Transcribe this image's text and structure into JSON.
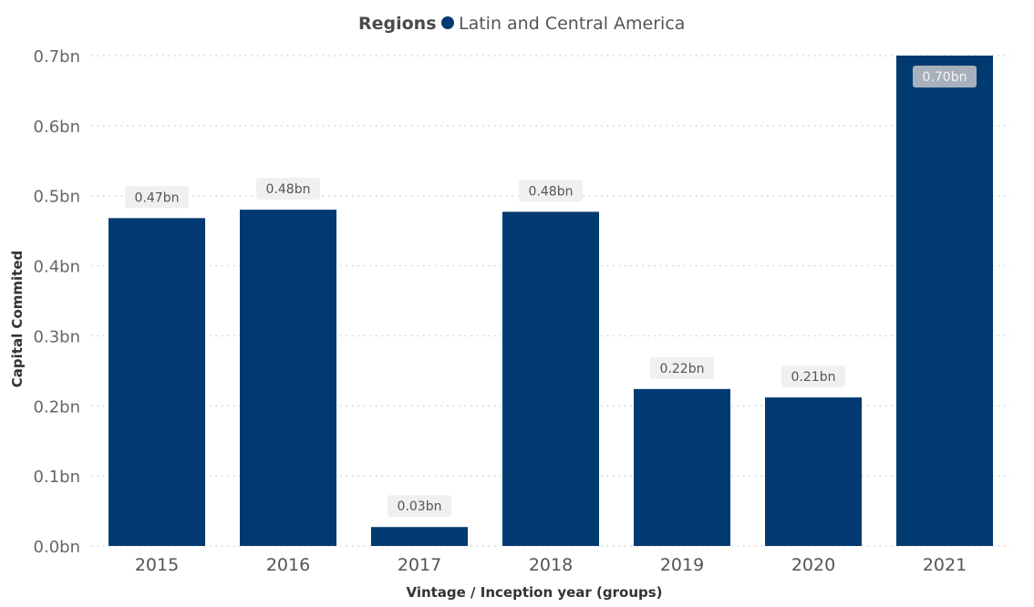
{
  "chart_data": {
    "type": "bar",
    "legend": {
      "title": "Regions",
      "placement": "top-center",
      "items": [
        {
          "name": "Latin and Central America",
          "color": "#003a70"
        }
      ]
    },
    "xlabel": "Vintage / Inception year (groups)",
    "ylabel": "Capital Commited",
    "ylim": [
      0,
      0.7
    ],
    "yticks": [
      "0.0bn",
      "0.1bn",
      "0.2bn",
      "0.3bn",
      "0.4bn",
      "0.5bn",
      "0.6bn",
      "0.7bn"
    ],
    "grid": true,
    "categories": [
      "2015",
      "2016",
      "2017",
      "2018",
      "2019",
      "2020",
      "2021"
    ],
    "series": [
      {
        "name": "Latin and Central America",
        "color": "#003a70",
        "values": [
          0.468,
          0.48,
          0.027,
          0.477,
          0.224,
          0.212,
          0.7
        ],
        "data_labels": [
          "0.47bn",
          "0.48bn",
          "0.03bn",
          "0.48bn",
          "0.22bn",
          "0.21bn",
          "0.70bn"
        ]
      }
    ]
  }
}
